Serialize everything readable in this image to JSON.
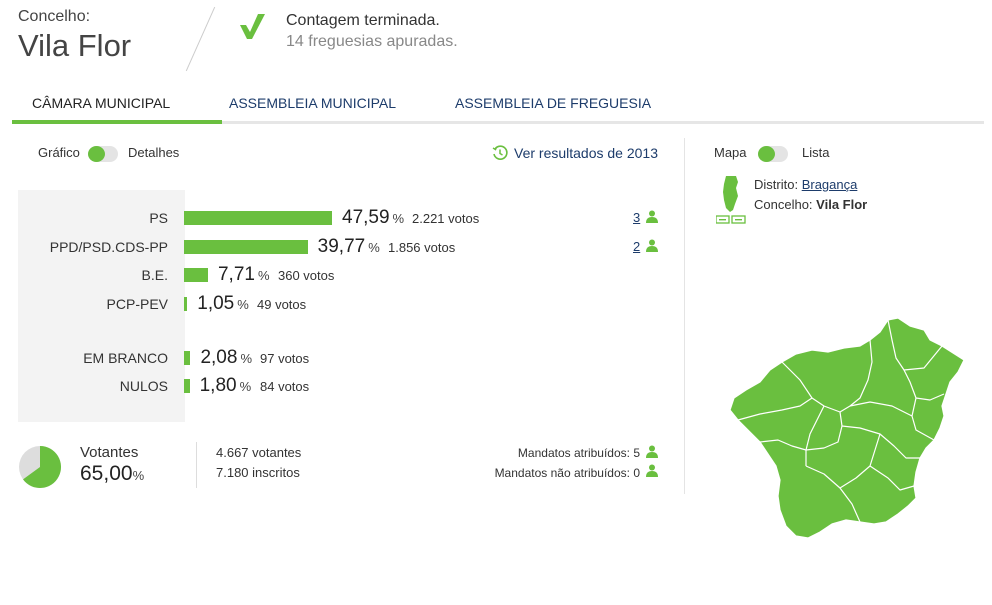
{
  "header": {
    "concelho_label": "Concelho:",
    "concelho_name": "Vila Flor",
    "status_title": "Contagem terminada.",
    "status_sub": "14 freguesias apuradas."
  },
  "tabs": [
    {
      "label": "CÂMARA MUNICIPAL",
      "active": true
    },
    {
      "label": "ASSEMBLEIA MUNICIPAL",
      "active": false
    },
    {
      "label": "ASSEMBLEIA DE FREGUESIA",
      "active": false
    }
  ],
  "view_toggle": {
    "left": "Gráfico",
    "right": "Detalhes"
  },
  "history_link": "Ver resultados de 2013",
  "results": [
    {
      "party": "PS",
      "percent": "47,59",
      "pct_unit": "%",
      "votes": "2.221 votos",
      "seats": "3",
      "share": 47.59
    },
    {
      "party": "PPD/PSD.CDS-PP",
      "percent": "39,77",
      "pct_unit": "%",
      "votes": "1.856 votos",
      "seats": "2",
      "share": 39.77
    },
    {
      "party": "B.E.",
      "percent": "7,71",
      "pct_unit": "%",
      "votes": "360 votos",
      "share": 7.71
    },
    {
      "party": "PCP-PEV",
      "percent": "1,05",
      "pct_unit": "%",
      "votes": "49 votos",
      "share": 1.05
    },
    {
      "party": "EM BRANCO",
      "percent": "2,08",
      "pct_unit": "%",
      "votes": "97 votos",
      "share": 2.08
    },
    {
      "party": "NULOS",
      "percent": "1,80",
      "pct_unit": "%",
      "votes": "84 votos",
      "share": 1.8
    }
  ],
  "turnout": {
    "label": "Votantes",
    "value": "65,00",
    "unit": "%",
    "share": 65.0,
    "voters": "4.667 votantes",
    "registered": "7.180 inscritos",
    "mandates_assigned": "Mandatos atribuídos: 5",
    "mandates_unassigned": "Mandatos não atribuídos: 0"
  },
  "map_toggle": {
    "left": "Mapa",
    "right": "Lista"
  },
  "district": {
    "district_label": "Distrito:",
    "district_value": "Bragança",
    "concelho_label": "Concelho:",
    "concelho_value": "Vila Flor"
  },
  "colors": {
    "accent": "#6abf3f",
    "link": "#1d3c6b"
  }
}
